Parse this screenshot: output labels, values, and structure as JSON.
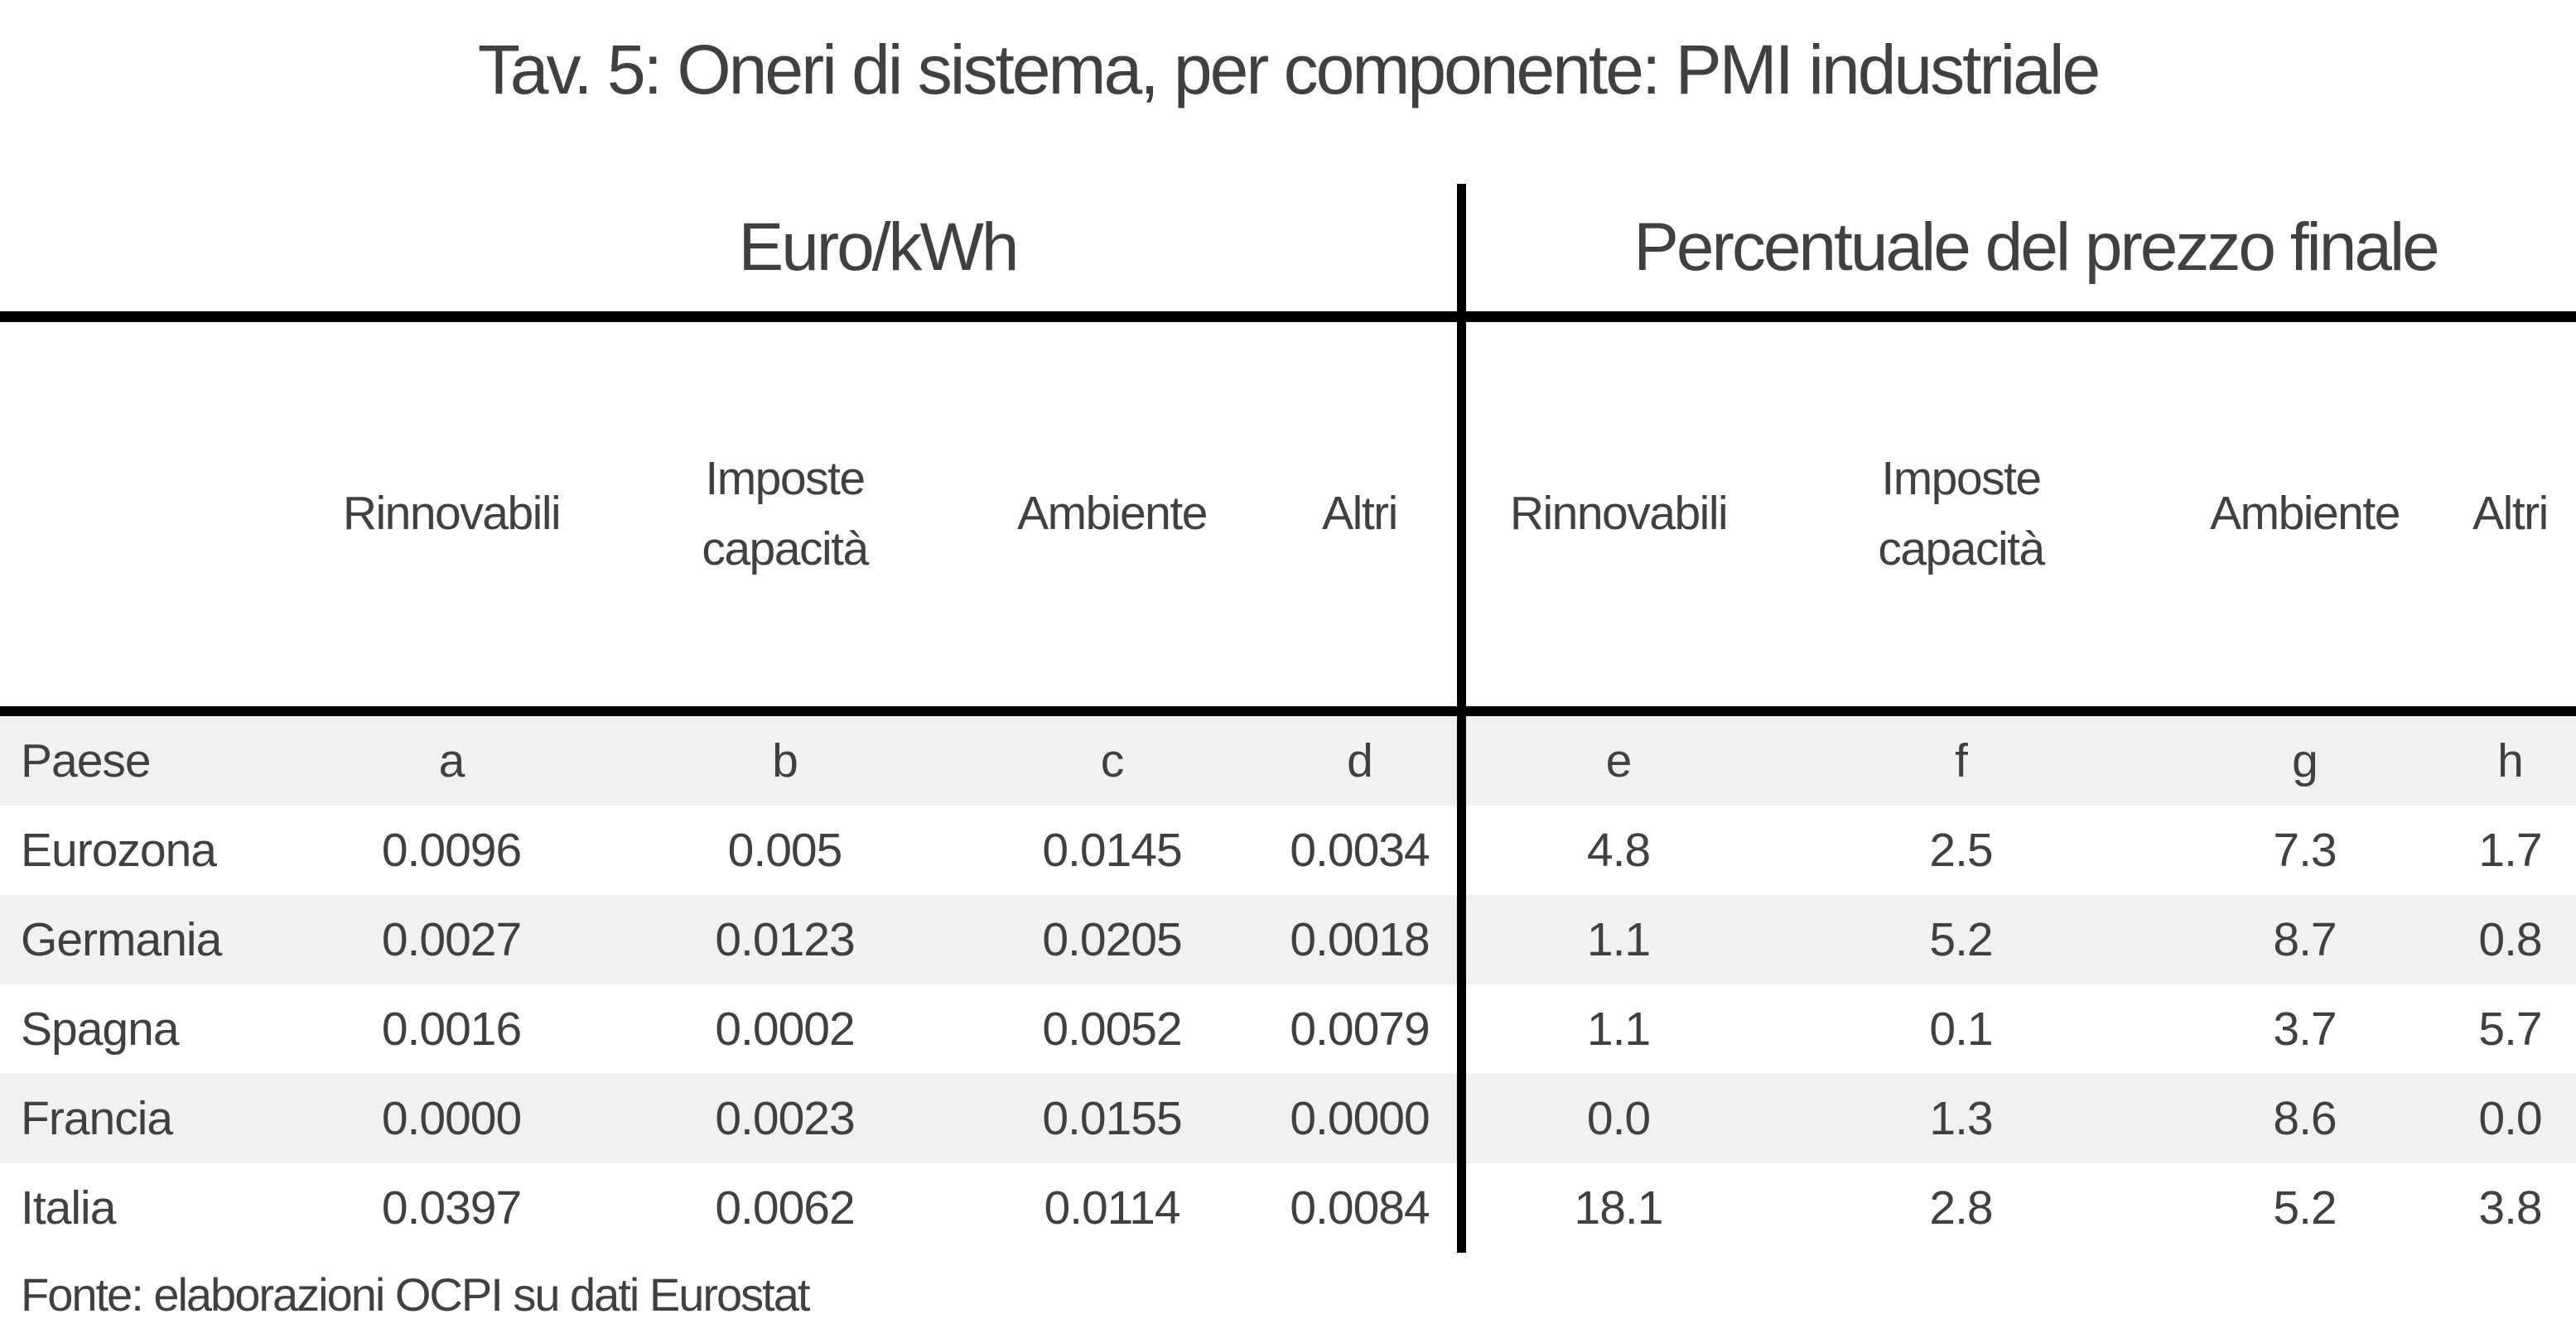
{
  "title": "Tav. 5: Oneri di sistema, per componente: PMI industriale",
  "sections": {
    "left": "Euro/kWh",
    "right": "Percentuale del prezzo finale"
  },
  "columns": {
    "row_header": "Paese",
    "left": [
      "Rinnovabili",
      "Imposte\ncapacità",
      "Ambiente",
      "Altri"
    ],
    "right": [
      "Rinnovabili",
      "Imposte\ncapacità",
      "Ambiente",
      "Altri"
    ],
    "letters": [
      "a",
      "b",
      "c",
      "d",
      "e",
      "f",
      "g",
      "h"
    ]
  },
  "rows": [
    {
      "country": "Eurozona",
      "euro_kwh": [
        "0.0096",
        "0.005",
        "0.0145",
        "0.0034"
      ],
      "percent": [
        "4.8",
        "2.5",
        "7.3",
        "1.7"
      ]
    },
    {
      "country": "Germania",
      "euro_kwh": [
        "0.0027",
        "0.0123",
        "0.0205",
        "0.0018"
      ],
      "percent": [
        "1.1",
        "5.2",
        "8.7",
        "0.8"
      ]
    },
    {
      "country": "Spagna",
      "euro_kwh": [
        "0.0016",
        "0.0002",
        "0.0052",
        "0.0079"
      ],
      "percent": [
        "1.1",
        "0.1",
        "3.7",
        "5.7"
      ]
    },
    {
      "country": "Francia",
      "euro_kwh": [
        "0.0000",
        "0.0023",
        "0.0155",
        "0.0000"
      ],
      "percent": [
        "0.0",
        "1.3",
        "8.6",
        "0.0"
      ]
    },
    {
      "country": "Italia",
      "euro_kwh": [
        "0.0397",
        "0.0062",
        "0.0114",
        "0.0084"
      ],
      "percent": [
        "18.1",
        "2.8",
        "5.2",
        "3.8"
      ]
    }
  ],
  "source_note": "Fonte: elaborazioni OCPI su dati Eurostat",
  "colors": {
    "text": "#404040",
    "rule": "#000000",
    "stripe": "#f1f1f1",
    "background": "#ffffff"
  },
  "chart_data": {
    "type": "table",
    "title": "Tav. 5: Oneri di sistema, per componente: PMI industriale",
    "column_groups": [
      "Euro/kWh",
      "Percentuale del prezzo finale"
    ],
    "categories": [
      "Eurozona",
      "Germania",
      "Spagna",
      "Francia",
      "Italia"
    ],
    "series": [
      {
        "name": "Euro/kWh - Rinnovabili (a)",
        "values": [
          0.0096,
          0.0027,
          0.0016,
          0.0,
          0.0397
        ]
      },
      {
        "name": "Euro/kWh - Imposte capacità (b)",
        "values": [
          0.005,
          0.0123,
          0.0002,
          0.0023,
          0.0062
        ]
      },
      {
        "name": "Euro/kWh - Ambiente (c)",
        "values": [
          0.0145,
          0.0205,
          0.0052,
          0.0155,
          0.0114
        ]
      },
      {
        "name": "Euro/kWh - Altri (d)",
        "values": [
          0.0034,
          0.0018,
          0.0079,
          0.0,
          0.0084
        ]
      },
      {
        "name": "Percentuale del prezzo finale - Rinnovabili (e)",
        "values": [
          4.8,
          1.1,
          1.1,
          0.0,
          18.1
        ]
      },
      {
        "name": "Percentuale del prezzo finale - Imposte capacità (f)",
        "values": [
          2.5,
          5.2,
          0.1,
          1.3,
          2.8
        ]
      },
      {
        "name": "Percentuale del prezzo finale - Ambiente (g)",
        "values": [
          7.3,
          8.7,
          3.7,
          8.6,
          5.2
        ]
      },
      {
        "name": "Percentuale del prezzo finale - Altri (h)",
        "values": [
          1.7,
          0.8,
          5.7,
          0.0,
          3.8
        ]
      }
    ],
    "source": "Fonte: elaborazioni OCPI su dati Eurostat"
  }
}
